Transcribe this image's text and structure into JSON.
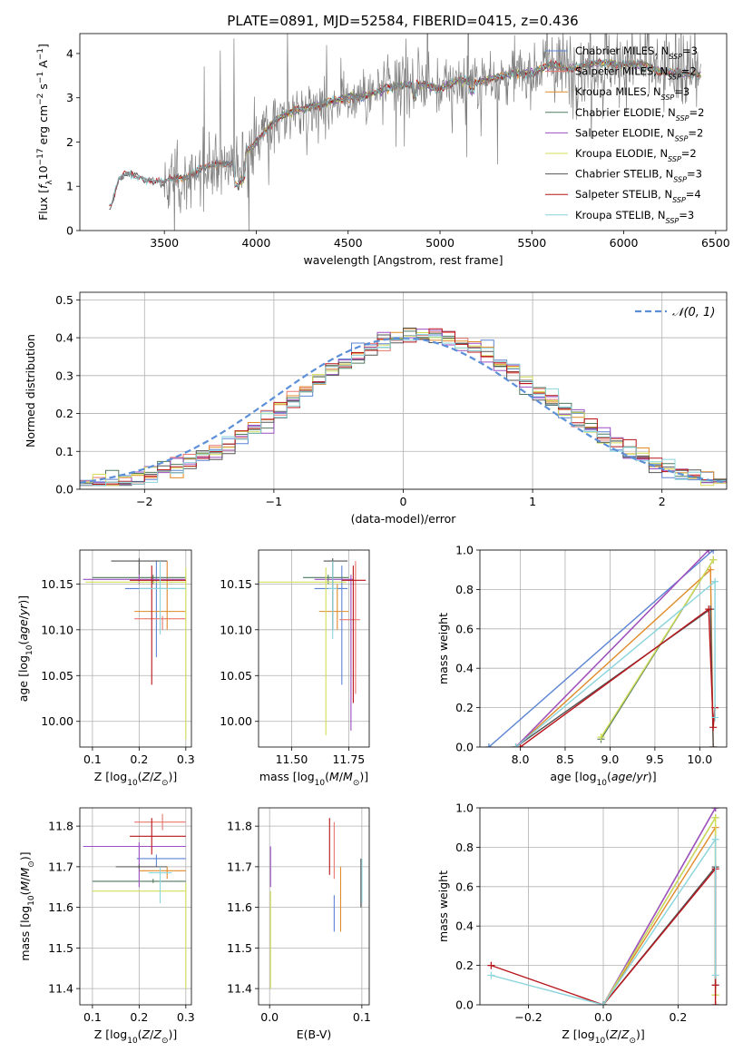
{
  "figure": {
    "title": "PLATE=0891, MJD=52584, FIBERID=0415, z=0.436"
  },
  "colors": {
    "Chabrier MILES": "#5b84d4",
    "Salpeter MILES": "#e8776e",
    "Kroupa MILES": "#e08a2a",
    "Chabrier ELODIE": "#4f7a5e",
    "Salpeter ELODIE": "#9b4fc2",
    "Kroupa ELODIE": "#d2de57",
    "Chabrier STELIB": "#555555",
    "Salpeter STELIB": "#b8141a",
    "Kroupa STELIB": "#8ad4dc",
    "data": "#808080",
    "normal": "#5b8fd8"
  },
  "legend_top": [
    {
      "model": "Chabrier MILES",
      "prefix": "Chabrier MILES, N",
      "sub": "SSP",
      "suffix": "=3"
    },
    {
      "model": "Salpeter MILES",
      "prefix": "Salpeter MILES, N",
      "sub": "SSP",
      "suffix": "=2"
    },
    {
      "model": "Kroupa MILES",
      "prefix": "Kroupa MILES, N",
      "sub": "SSP",
      "suffix": "=3"
    },
    {
      "model": "Chabrier ELODIE",
      "prefix": "Chabrier ELODIE, N",
      "sub": "SSP",
      "suffix": "=2"
    },
    {
      "model": "Salpeter ELODIE",
      "prefix": "Salpeter ELODIE, N",
      "sub": "SSP",
      "suffix": "=2"
    },
    {
      "model": "Kroupa ELODIE",
      "prefix": "Kroupa ELODIE, N",
      "sub": "SSP",
      "suffix": "=2"
    },
    {
      "model": "Chabrier STELIB",
      "prefix": "Chabrier STELIB, N",
      "sub": "SSP",
      "suffix": "=3"
    },
    {
      "model": "Salpeter STELIB",
      "prefix": "Salpeter STELIB, N",
      "sub": "SSP",
      "suffix": "=4"
    },
    {
      "model": "Kroupa STELIB",
      "prefix": "Kroupa STELIB, N",
      "sub": "SSP",
      "suffix": "=3"
    }
  ],
  "chart_data": [
    {
      "id": "spectrum",
      "type": "line",
      "title": "PLATE=0891, MJD=52584, FIBERID=0415, z=0.436",
      "xlabel": "wavelength [Angstrom, rest frame]",
      "ylabel_parts": {
        "a": "Flux [",
        "f": "f",
        "fsub": "λ",
        "b": "10",
        "bsup": "−17",
        "c": " erg cm",
        "csup": "−2",
        "d": " s",
        "dsup": "−1",
        "e": " A",
        "esup": "−1",
        "g": "]"
      },
      "xlim": [
        3040,
        6560
      ],
      "ylim": [
        0,
        4.45
      ],
      "xticks": [
        3500,
        4000,
        4500,
        5000,
        5500,
        6000,
        6500
      ],
      "yticks": [
        0,
        1,
        2,
        3,
        4
      ],
      "grid": false,
      "legend_position": "right",
      "continuum": {
        "x": [
          3210,
          3250,
          3300,
          3400,
          3500,
          3600,
          3700,
          3800,
          3900,
          4000,
          4100,
          4200,
          4300,
          4400,
          4500,
          4600,
          4700,
          4800,
          4900,
          5000,
          5100,
          5200,
          5300,
          5400,
          5500,
          5600,
          5700,
          5800,
          5900,
          6000,
          6100,
          6200,
          6300,
          6420
        ],
        "y": [
          0.55,
          1.15,
          1.3,
          1.15,
          1.1,
          1.2,
          1.4,
          1.5,
          1.55,
          2.0,
          2.5,
          2.7,
          2.8,
          2.9,
          3.0,
          3.05,
          3.2,
          3.3,
          3.3,
          3.2,
          3.4,
          3.35,
          3.45,
          3.55,
          3.55,
          3.75,
          3.65,
          3.75,
          3.8,
          3.75,
          3.75,
          3.6,
          3.55,
          3.5
        ]
      },
      "series_start": {
        "MILES": 3540,
        "ELODIE": 3900,
        "STELIB": 3200
      }
    },
    {
      "id": "residuals",
      "type": "histogram",
      "xlabel": "(data-model)/error",
      "ylabel": "Normed distribution",
      "xlim": [
        -2.5,
        2.5
      ],
      "ylim": [
        0,
        0.52
      ],
      "xticks": [
        -2,
        -1,
        0,
        1,
        2
      ],
      "yticks": [
        0.0,
        0.1,
        0.2,
        0.3,
        0.4,
        0.5
      ],
      "grid": true,
      "legend_label": "N(0,1)",
      "bin_width": 0.1
    },
    {
      "id": "age-vs-Z",
      "type": "scatter",
      "xlabel": "Z [log10(Z/Z⊙)]",
      "ylabel": "age  [log10(age/yr)]",
      "xlim": [
        0.073,
        0.312
      ],
      "ylim": [
        9.972,
        10.187
      ],
      "xticks": [
        0.1,
        0.2,
        0.3
      ],
      "yticks": [
        10.0,
        10.05,
        10.1,
        10.15
      ],
      "grid": true,
      "points": [
        {
          "model": "Chabrier MILES",
          "x": 0.237,
          "y": 10.145,
          "xerr": [
            0.17,
            0.3
          ],
          "yerr": [
            10.07,
            10.175
          ]
        },
        {
          "model": "Salpeter MILES",
          "x": 0.25,
          "y": 10.112,
          "xerr": [
            0.19,
            0.3
          ],
          "yerr": [
            10.1,
            10.115
          ]
        },
        {
          "model": "Kroupa MILES",
          "x": 0.26,
          "y": 10.12,
          "xerr": [
            0.19,
            0.3
          ],
          "yerr": [
            10.1,
            10.175
          ]
        },
        {
          "model": "Chabrier ELODIE",
          "x": 0.23,
          "y": 10.157,
          "xerr": [
            0.1,
            0.3
          ],
          "yerr": [
            10.15,
            10.16
          ]
        },
        {
          "model": "Salpeter ELODIE",
          "x": 0.2,
          "y": 10.155,
          "xerr": [
            0.08,
            0.3
          ],
          "yerr": [
            10.15,
            10.16
          ]
        },
        {
          "model": "Kroupa ELODIE",
          "x": 0.3,
          "y": 10.152,
          "xerr": [
            0.085,
            0.3
          ],
          "yerr": [
            9.98,
            10.168
          ]
        },
        {
          "model": "Chabrier STELIB",
          "x": 0.2,
          "y": 10.175,
          "xerr": [
            0.14,
            0.26
          ],
          "yerr": [
            10.16,
            10.178
          ]
        },
        {
          "model": "Salpeter STELIB",
          "x": 0.227,
          "y": 10.154,
          "xerr": [
            0.18,
            0.3
          ],
          "yerr": [
            10.04,
            10.17
          ]
        },
        {
          "model": "Kroupa STELIB",
          "x": 0.245,
          "y": 10.145,
          "xerr": [
            0.2,
            0.3
          ],
          "yerr": [
            10.095,
            10.175
          ]
        }
      ]
    },
    {
      "id": "age-vs-mass",
      "type": "scatter",
      "xlabel": "mass [log10(M/M⊙)]",
      "ylabel": "",
      "xlim": [
        11.355,
        11.84
      ],
      "ylim": [
        9.972,
        10.187
      ],
      "xticks": [
        11.5,
        11.75
      ],
      "yticks": [
        10.0,
        10.05,
        10.1,
        10.15
      ],
      "grid": true,
      "points": [
        {
          "model": "Chabrier MILES",
          "x": 11.72,
          "y": 10.145,
          "xerr": [
            11.6,
            11.745
          ],
          "yerr": [
            10.04,
            10.17
          ]
        },
        {
          "model": "Salpeter MILES",
          "x": 11.78,
          "y": 10.111,
          "xerr": [
            11.71,
            11.8
          ],
          "yerr": [
            10.03,
            10.175
          ]
        },
        {
          "model": "Kroupa MILES",
          "x": 11.7,
          "y": 10.12,
          "xerr": [
            11.62,
            11.75
          ],
          "yerr": [
            10.1,
            10.15
          ]
        },
        {
          "model": "Chabrier ELODIE",
          "x": 11.66,
          "y": 10.157,
          "xerr": [
            11.55,
            11.75
          ],
          "yerr": [
            10.15,
            10.16
          ]
        },
        {
          "model": "Salpeter ELODIE",
          "x": 11.76,
          "y": 10.155,
          "xerr": [
            11.6,
            11.77
          ],
          "yerr": [
            9.99,
            10.16
          ]
        },
        {
          "model": "Kroupa ELODIE",
          "x": 11.65,
          "y": 10.152,
          "xerr": [
            11.3,
            11.74
          ],
          "yerr": [
            9.985,
            10.168
          ]
        },
        {
          "model": "Chabrier STELIB",
          "x": 11.68,
          "y": 10.175,
          "xerr": [
            11.64,
            11.745
          ],
          "yerr": [
            10.1,
            10.178
          ]
        },
        {
          "model": "Salpeter STELIB",
          "x": 11.77,
          "y": 10.154,
          "xerr": [
            11.72,
            11.825
          ],
          "yerr": [
            10.02,
            10.17
          ]
        },
        {
          "model": "Kroupa STELIB",
          "x": 11.68,
          "y": 10.145,
          "xerr": [
            11.66,
            11.7
          ],
          "yerr": [
            10.09,
            10.175
          ]
        }
      ]
    },
    {
      "id": "weight-vs-age",
      "type": "line",
      "xlabel": "age  [log10(age/yr)]",
      "ylabel": "mass weight",
      "xlim": [
        7.55,
        10.3
      ],
      "ylim": [
        0,
        1.0
      ],
      "xticks": [
        8.0,
        8.5,
        9.0,
        9.5,
        10.0
      ],
      "yticks": [
        0.0,
        0.2,
        0.4,
        0.6,
        0.8,
        1.0
      ],
      "grid": true,
      "series": [
        {
          "model": "Chabrier MILES",
          "x": [
            7.65,
            10.15
          ],
          "y": [
            0.0,
            1.0
          ]
        },
        {
          "model": "Salpeter MILES",
          "x": [
            7.95,
            10.1
          ],
          "y": [
            0.0,
            1.0
          ]
        },
        {
          "model": "Kroupa MILES",
          "x": [
            7.95,
            10.12,
            10.15
          ],
          "y": [
            0.0,
            0.9,
            0.0
          ]
        },
        {
          "model": "Chabrier ELODIE",
          "x": [
            8.9,
            10.15
          ],
          "y": [
            0.04,
            0.95
          ]
        },
        {
          "model": "Salpeter ELODIE",
          "x": [
            7.95,
            10.1
          ],
          "y": [
            0.0,
            1.0
          ]
        },
        {
          "model": "Kroupa ELODIE",
          "x": [
            8.9,
            10.15
          ],
          "y": [
            0.05,
            0.95
          ]
        },
        {
          "model": "Chabrier STELIB",
          "x": [
            7.95,
            10.12,
            10.15
          ],
          "y": [
            0.0,
            0.7,
            0.0
          ]
        },
        {
          "model": "Salpeter STELIB",
          "x": [
            8.0,
            10.1,
            10.15,
            10.17
          ],
          "y": [
            0.0,
            0.7,
            0.1,
            0.2
          ]
        },
        {
          "model": "Kroupa STELIB",
          "x": [
            7.95,
            10.17,
            10.17
          ],
          "y": [
            0.0,
            0.84,
            0.15
          ]
        }
      ]
    },
    {
      "id": "mass-vs-Z",
      "type": "scatter",
      "xlabel": "Z [log10(Z/Z⊙)]",
      "ylabel": "mass [log10(M/M⊙)]",
      "xlim": [
        0.073,
        0.312
      ],
      "ylim": [
        11.36,
        11.845
      ],
      "xticks": [
        0.1,
        0.2,
        0.3
      ],
      "yticks": [
        11.4,
        11.5,
        11.6,
        11.7,
        11.8
      ],
      "grid": true,
      "points": [
        {
          "model": "Chabrier MILES",
          "x": 0.237,
          "y": 11.72,
          "xerr": [
            0.195,
            0.3
          ],
          "yerr": [
            11.7,
            11.73
          ]
        },
        {
          "model": "Salpeter MILES",
          "x": 0.25,
          "y": 11.81,
          "xerr": [
            0.19,
            0.3
          ],
          "yerr": [
            11.79,
            11.83
          ]
        },
        {
          "model": "Kroupa MILES",
          "x": 0.26,
          "y": 11.69,
          "xerr": [
            0.2,
            0.3
          ],
          "yerr": [
            11.67,
            11.7
          ]
        },
        {
          "model": "Chabrier ELODIE",
          "x": 0.23,
          "y": 11.664,
          "xerr": [
            0.1,
            0.3
          ],
          "yerr": [
            11.66,
            11.67
          ]
        },
        {
          "model": "Salpeter ELODIE",
          "x": 0.2,
          "y": 11.75,
          "xerr": [
            0.08,
            0.3
          ],
          "yerr": [
            11.65,
            11.76
          ]
        },
        {
          "model": "Kroupa ELODIE",
          "x": 0.3,
          "y": 11.64,
          "xerr": [
            0.1,
            0.3
          ],
          "yerr": [
            11.4,
            11.66
          ]
        },
        {
          "model": "Chabrier STELIB",
          "x": 0.2,
          "y": 11.7,
          "xerr": [
            0.15,
            0.26
          ],
          "yerr": [
            11.695,
            11.705
          ]
        },
        {
          "model": "Salpeter STELIB",
          "x": 0.227,
          "y": 11.775,
          "xerr": [
            0.18,
            0.3
          ],
          "yerr": [
            11.73,
            11.82
          ]
        },
        {
          "model": "Kroupa STELIB",
          "x": 0.245,
          "y": 11.685,
          "xerr": [
            0.22,
            0.27
          ],
          "yerr": [
            11.61,
            11.7
          ]
        }
      ]
    },
    {
      "id": "mass-vs-EBV",
      "type": "scatter",
      "xlabel": "E(B-V)",
      "ylabel": "",
      "xlim": [
        -0.012,
        0.108
      ],
      "ylim": [
        11.36,
        11.845
      ],
      "xticks": [
        0.0,
        0.1
      ],
      "yticks": [
        11.4,
        11.5,
        11.6,
        11.7,
        11.8
      ],
      "grid": true,
      "points": [
        {
          "model": "Chabrier MILES",
          "x": 0.07,
          "y": 11.59,
          "yerr": [
            11.54,
            11.63
          ]
        },
        {
          "model": "Salpeter MILES",
          "x": 0.07,
          "y": 11.75,
          "yerr": [
            11.67,
            11.81
          ]
        },
        {
          "model": "Kroupa MILES",
          "x": 0.077,
          "y": 11.62,
          "yerr": [
            11.54,
            11.7
          ]
        },
        {
          "model": "Salpeter ELODIE",
          "x": 0.001,
          "y": 11.7,
          "yerr": [
            11.65,
            11.75
          ]
        },
        {
          "model": "Kroupa ELODIE",
          "x": 0.001,
          "y": 11.52,
          "yerr": [
            11.4,
            11.64
          ]
        },
        {
          "model": "Salpeter STELIB",
          "x": 0.065,
          "y": 11.75,
          "yerr": [
            11.68,
            11.82
          ]
        },
        {
          "model": "Kroupa STELIB",
          "x": 0.1,
          "y": 11.66,
          "yerr": [
            11.61,
            11.72
          ]
        },
        {
          "model": "Chabrier STELIB",
          "x": 0.099,
          "y": 11.66,
          "yerr": [
            11.6,
            11.72
          ]
        }
      ]
    },
    {
      "id": "weight-vs-Z",
      "type": "line",
      "xlabel": "Z [log10(Z/Z⊙)]",
      "ylabel": "mass weight",
      "xlim": [
        -0.33,
        0.33
      ],
      "ylim": [
        0,
        1.0
      ],
      "xticks": [
        -0.2,
        0.0,
        0.2
      ],
      "yticks": [
        0.0,
        0.2,
        0.4,
        0.6,
        0.8,
        1.0
      ],
      "grid": true,
      "series": [
        {
          "model": "Chabrier MILES",
          "x": [
            0.0,
            0.3
          ],
          "y": [
            0.0,
            1.0
          ]
        },
        {
          "model": "Salpeter MILES",
          "x": [
            0.0,
            0.3
          ],
          "y": [
            0.0,
            1.0
          ]
        },
        {
          "model": "Kroupa MILES",
          "x": [
            0.0,
            0.3,
            0.3
          ],
          "y": [
            0.0,
            0.9,
            0.05
          ]
        },
        {
          "model": "Chabrier ELODIE",
          "x": [
            0.0,
            0.3
          ],
          "y": [
            0.0,
            0.95
          ]
        },
        {
          "model": "Salpeter ELODIE",
          "x": [
            0.0,
            0.3
          ],
          "y": [
            0.0,
            1.0
          ]
        },
        {
          "model": "Kroupa ELODIE",
          "x": [
            0.0,
            0.3,
            0.3
          ],
          "y": [
            0.0,
            0.95,
            0.05
          ]
        },
        {
          "model": "Chabrier STELIB",
          "x": [
            0.0,
            0.3,
            0.3
          ],
          "y": [
            0.0,
            0.7,
            0.1
          ]
        },
        {
          "model": "Salpeter STELIB",
          "x": [
            -0.3,
            0.0,
            0.3,
            0.3,
            0.3
          ],
          "y": [
            0.2,
            0.0,
            0.69,
            0.1,
            0.0
          ]
        },
        {
          "model": "Kroupa STELIB",
          "x": [
            -0.3,
            0.0,
            0.3,
            0.3
          ],
          "y": [
            0.15,
            0.0,
            0.84,
            0.15
          ]
        }
      ]
    }
  ]
}
